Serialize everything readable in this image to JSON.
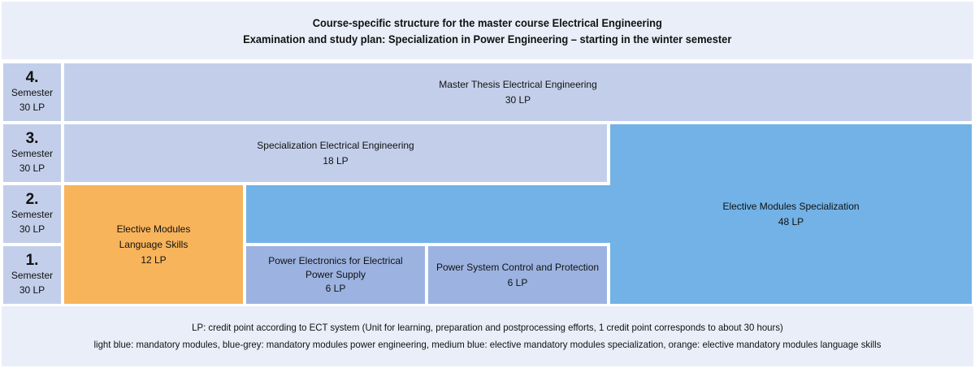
{
  "header": {
    "line1": "Course-specific structure for the master course Electrical Engineering",
    "line2": "Examination and study plan: Specialization in Power Engineering – starting in the winter semester"
  },
  "semesters": [
    {
      "num": "4.",
      "label": "Semester",
      "lp": "30 LP"
    },
    {
      "num": "3.",
      "label": "Semester",
      "lp": "30 LP"
    },
    {
      "num": "2.",
      "label": "Semester",
      "lp": "30 LP"
    },
    {
      "num": "1.",
      "label": "Semester",
      "lp": "30 LP"
    }
  ],
  "modules": {
    "thesis": {
      "title": "Master Thesis Electrical Engineering",
      "lp": "30 LP"
    },
    "specialization": {
      "title": "Specialization Electrical Engineering",
      "lp": "18 LP"
    },
    "elective_spec": {
      "title": "Elective Modules Specialization",
      "lp": "48 LP"
    },
    "language": {
      "line1": "Elective Modules",
      "line2": "Language Skills",
      "lp": "12 LP"
    },
    "power_electronics": {
      "line1": "Power Electronics for Electrical",
      "line2": "Power Supply",
      "lp": "6 LP"
    },
    "power_system": {
      "title": "Power System Control and Protection",
      "lp": "6 LP"
    }
  },
  "colors": {
    "light_blue": "#c3cfea",
    "blue_grey": "#9cb3e1",
    "medium_blue": "#72b2e6",
    "orange": "#f8b45b"
  },
  "footer": {
    "line1": "LP: credit point according to ECT system (Unit for learning, preparation and postprocessing efforts, 1 credit point corresponds to about 30 hours)",
    "line2": "light blue: mandatory modules, blue-grey: mandatory modules power engineering, medium blue: elective mandatory modules specialization, orange: elective mandatory modules language skills"
  }
}
